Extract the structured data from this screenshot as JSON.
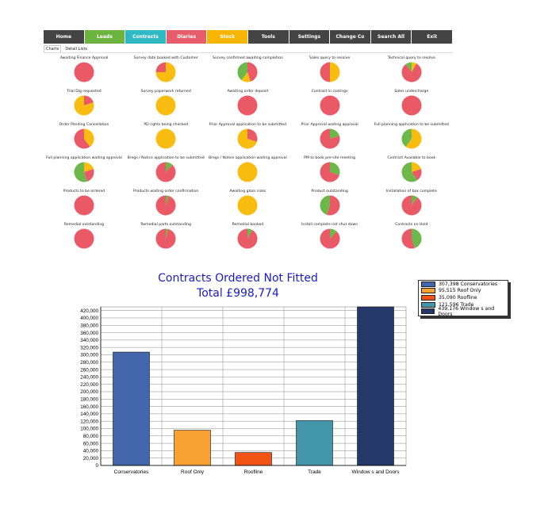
{
  "nav": [
    {
      "label": "Home",
      "color": "#444444"
    },
    {
      "label": "Leads",
      "color": "#6db33f"
    },
    {
      "label": "Contracts",
      "color": "#30b8c4"
    },
    {
      "label": "Diaries",
      "color": "#e85d6a"
    },
    {
      "label": "Stock",
      "color": "#f7b500"
    },
    {
      "label": "Tools",
      "color": "#444444"
    },
    {
      "label": "Settings",
      "color": "#444444"
    },
    {
      "label": "Change Co",
      "color": "#444444"
    },
    {
      "label": "Search All",
      "color": "#444444"
    },
    {
      "label": "Exit",
      "color": "#444444"
    }
  ],
  "tabs": [
    "Charts",
    "Detail Lists"
  ],
  "pie_colors": {
    "red": "#ea5a66",
    "yellow": "#f9bd12",
    "green": "#6cb84a"
  },
  "pies": [
    {
      "label": "Awaiting Finance Approval",
      "slices": [
        [
          "red",
          1.0
        ]
      ]
    },
    {
      "label": "Survey date booked with Customer",
      "slices": [
        [
          "yellow",
          0.75
        ],
        [
          "red",
          0.25
        ]
      ]
    },
    {
      "label": "Survey confirmed awaiting completion",
      "slices": [
        [
          "red",
          0.45
        ],
        [
          "yellow",
          0.15
        ],
        [
          "green",
          0.4
        ]
      ]
    },
    {
      "label": "Sales query to resolve",
      "slices": [
        [
          "yellow",
          0.5
        ],
        [
          "red",
          0.5
        ]
      ]
    },
    {
      "label": "Technical query to resolve",
      "slices": [
        [
          "yellow",
          0.08
        ],
        [
          "red",
          0.82
        ],
        [
          "green",
          0.1
        ]
      ]
    },
    {
      "label": "Trial Dig requested",
      "slices": [
        [
          "red",
          0.2
        ],
        [
          "yellow",
          0.8
        ]
      ]
    },
    {
      "label": "Survey paperwork returned",
      "slices": [
        [
          "yellow",
          1.0
        ]
      ]
    },
    {
      "label": "Awaiting order deposit",
      "slices": [
        [
          "red",
          1.0
        ]
      ]
    },
    {
      "label": "Contract in costings",
      "slices": [
        [
          "red",
          1.0
        ]
      ]
    },
    {
      "label": "Sales undercharge",
      "slices": [
        [
          "red",
          1.0
        ]
      ]
    },
    {
      "label": "Order Pending Cancellation",
      "slices": [
        [
          "yellow",
          0.4
        ],
        [
          "red",
          0.6
        ]
      ]
    },
    {
      "label": "PD rights being checked",
      "slices": [
        [
          "yellow",
          1.0
        ]
      ]
    },
    {
      "label": "Prior Approval application to be submitted",
      "slices": [
        [
          "red",
          0.3
        ],
        [
          "yellow",
          0.7
        ]
      ]
    },
    {
      "label": "Prior Approval waiting approval",
      "slices": [
        [
          "green",
          0.2
        ],
        [
          "red",
          0.8
        ]
      ]
    },
    {
      "label": "Full planning application to be submitted",
      "slices": [
        [
          "yellow",
          0.6
        ],
        [
          "green",
          0.4
        ]
      ]
    },
    {
      "label": "Full planning application waiting approval",
      "slices": [
        [
          "yellow",
          0.2
        ],
        [
          "red",
          0.25
        ],
        [
          "green",
          0.55
        ]
      ]
    },
    {
      "label": "Bregs / Notice application to be submitted",
      "slices": [
        [
          "green",
          0.12
        ],
        [
          "red",
          0.88
        ]
      ]
    },
    {
      "label": "Bregs / Notice application waiting approval",
      "slices": [
        [
          "yellow",
          1.0
        ]
      ]
    },
    {
      "label": "PM to book pre-site meeting",
      "slices": [
        [
          "green",
          0.3
        ],
        [
          "red",
          0.7
        ]
      ]
    },
    {
      "label": "Contract Available to book",
      "slices": [
        [
          "yellow",
          0.2
        ],
        [
          "red",
          0.2
        ],
        [
          "green",
          0.6
        ]
      ]
    },
    {
      "label": "Products to be ordered",
      "slices": [
        [
          "red",
          1.0
        ]
      ]
    },
    {
      "label": "Products waiting order confirmation",
      "slices": [
        [
          "green",
          0.05
        ],
        [
          "red",
          0.95
        ]
      ]
    },
    {
      "label": "Awaiting glass sizes",
      "slices": [
        [
          "yellow",
          1.0
        ]
      ]
    },
    {
      "label": "Product outstanding",
      "slices": [
        [
          "red",
          0.55
        ],
        [
          "green",
          0.45
        ]
      ]
    },
    {
      "label": "Installation of box complete",
      "slices": [
        [
          "green",
          0.1
        ],
        [
          "red",
          0.9
        ]
      ]
    },
    {
      "label": "Remedial outstanding",
      "slices": [
        [
          "red",
          1.0
        ]
      ]
    },
    {
      "label": "Remedial parts outstanding",
      "slices": [
        [
          "green",
          0.04
        ],
        [
          "red",
          0.96
        ]
      ]
    },
    {
      "label": "Remedial booked",
      "slices": [
        [
          "green",
          0.08
        ],
        [
          "red",
          0.92
        ]
      ]
    },
    {
      "label": "Install complete not shut down",
      "slices": [
        [
          "green",
          0.12
        ],
        [
          "red",
          0.88
        ]
      ]
    },
    {
      "label": "Contracts on Hold",
      "slices": [
        [
          "green",
          0.45
        ],
        [
          "red",
          0.55
        ]
      ]
    }
  ],
  "chart_data": {
    "type": "bar",
    "title_line1": "Contracts Ordered Not Fitted",
    "title_line2": "Total £998,774",
    "categories": [
      "Conservatories",
      "Roof Only",
      "Roofline",
      "Trade",
      "Window s and Doors"
    ],
    "values": [
      307398,
      95515,
      35090,
      121596,
      439176
    ],
    "colors": [
      "#4466aa",
      "#f7a132",
      "#f25418",
      "#4496aa",
      "#24396a"
    ],
    "legend": [
      "307,398 Conservatories",
      "95,515 Roof Only",
      "35,090 Roofline",
      "121,596 Trade",
      "439,176 Window s and Doors"
    ],
    "ylim": [
      0,
      430000
    ],
    "yticks": [
      0,
      20000,
      40000,
      60000,
      80000,
      100000,
      120000,
      140000,
      160000,
      180000,
      200000,
      220000,
      240000,
      260000,
      280000,
      300000,
      320000,
      340000,
      360000,
      380000,
      400000,
      420000
    ],
    "grid": true,
    "legend_position": "top-right"
  }
}
